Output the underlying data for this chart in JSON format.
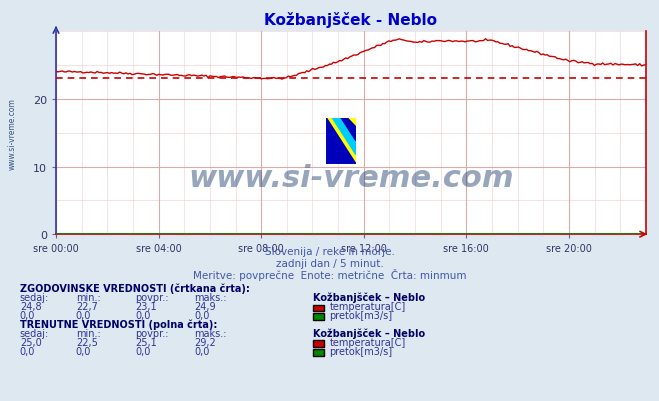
{
  "title": "Kožbanjšček - Neblo",
  "title_color": "#0000cc",
  "bg_color": "#dde8f0",
  "plot_bg_color": "#ffffff",
  "grid_major_color": "#ddaaaa",
  "grid_minor_color": "#f0cccc",
  "xtick_labels": [
    "sre 00:00",
    "sre 04:00",
    "sre 08:00",
    "sre 12:00",
    "sre 16:00",
    "sre 20:00"
  ],
  "xtick_positions": [
    0,
    240,
    480,
    720,
    960,
    1200
  ],
  "xlim": [
    0,
    1380
  ],
  "ylim": [
    0,
    30
  ],
  "ytick_positions": [
    0,
    10,
    20
  ],
  "ytick_labels": [
    "0",
    "10",
    "20"
  ],
  "temp_line_color": "#cc0000",
  "flow_line_color": "#008800",
  "hist_avg_value": 23.1,
  "watermark_text": "www.si-vreme.com",
  "watermark_color": "#1a3a6e",
  "sub_text1": "Slovenija / reke in morje.",
  "sub_text2": "zadnji dan / 5 minut.",
  "sub_text3": "Meritve: povprečne  Enote: metrične  Črta: minmum",
  "sub_text_color": "#4455aa",
  "label_color": "#333399",
  "header_color": "#000066",
  "hist_header": "ZGODOVINSKE VREDNOSTI (črtkana črta):",
  "curr_header": "TRENUTNE VREDNOSTI (polna črta):",
  "col_headers": [
    "sedaj:",
    "min.:",
    "povpr.:",
    "maks.:",
    "Kožbanjšček – Neblo"
  ],
  "hist_temp_row": [
    "24,8",
    "22,7",
    "23,1",
    "24,9"
  ],
  "hist_flow_row": [
    "0,0",
    "0,0",
    "0,0",
    "0,0"
  ],
  "curr_temp_row": [
    "25,0",
    "22,5",
    "25,1",
    "29,2"
  ],
  "curr_flow_row": [
    "0,0",
    "0,0",
    "0,0",
    "0,0"
  ],
  "temp_label": "temperatura[C]",
  "flow_label": "pretok[m3/s]",
  "ylabel_text": "www.si-vreme.com",
  "ylabel_color": "#1a3a6e"
}
